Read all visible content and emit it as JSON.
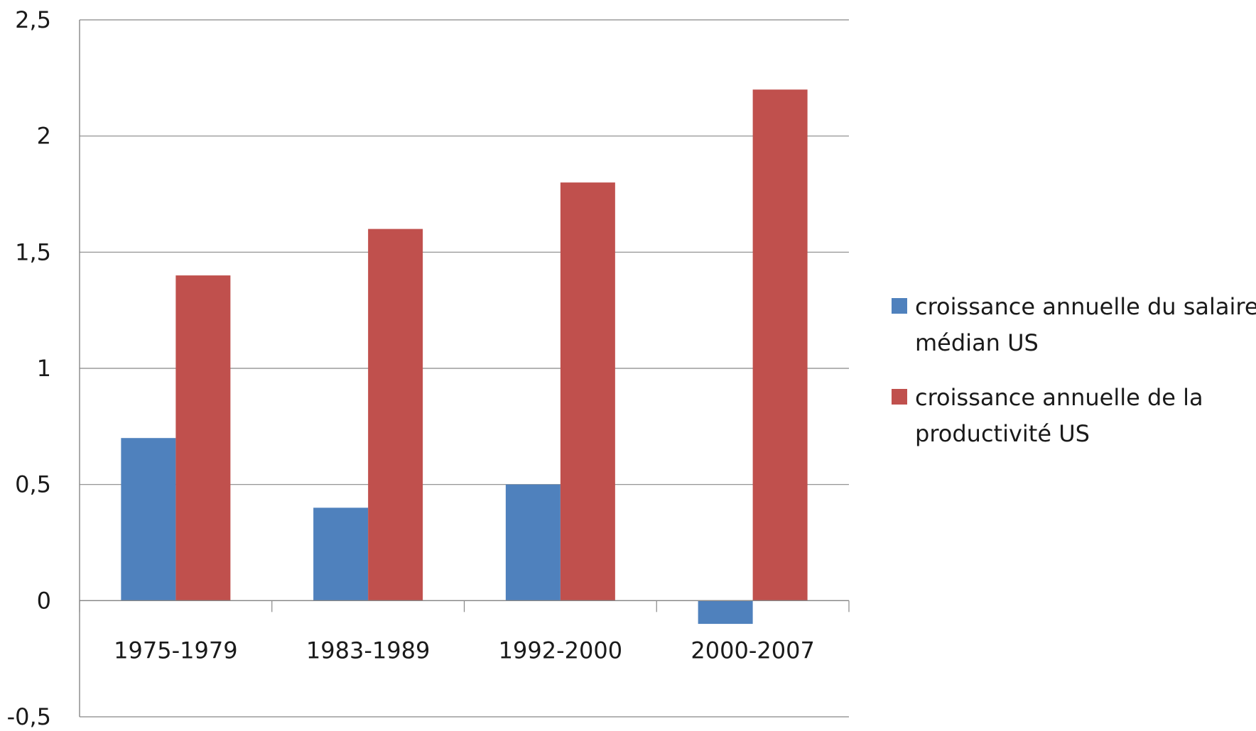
{
  "chart_data": {
    "type": "bar",
    "title": "",
    "xlabel": "",
    "ylabel": "",
    "categories": [
      "1975-1979",
      "1983-1989",
      "1992-2000",
      "2000-2007"
    ],
    "series": [
      {
        "name": "croissance annuelle du salaire médian US",
        "legend_lines": [
          "croissance annuelle du salaire",
          "médian US"
        ],
        "color": "#4f81bd",
        "values": [
          0.7,
          0.4,
          0.5,
          -0.1
        ]
      },
      {
        "name": "croissance annuelle de la productivité US",
        "legend_lines": [
          "croissance annuelle de la",
          "productivité US"
        ],
        "color": "#c0504d",
        "values": [
          1.4,
          1.6,
          1.8,
          2.2
        ]
      }
    ],
    "ylim": [
      -0.5,
      2.5
    ],
    "yticks": [
      -0.5,
      0,
      0.5,
      1,
      1.5,
      2,
      2.5
    ],
    "ytick_labels": [
      "-0,5",
      "0",
      "0,5",
      "1",
      "1,5",
      "2",
      "2,5"
    ],
    "grid": true,
    "legend": "right"
  }
}
